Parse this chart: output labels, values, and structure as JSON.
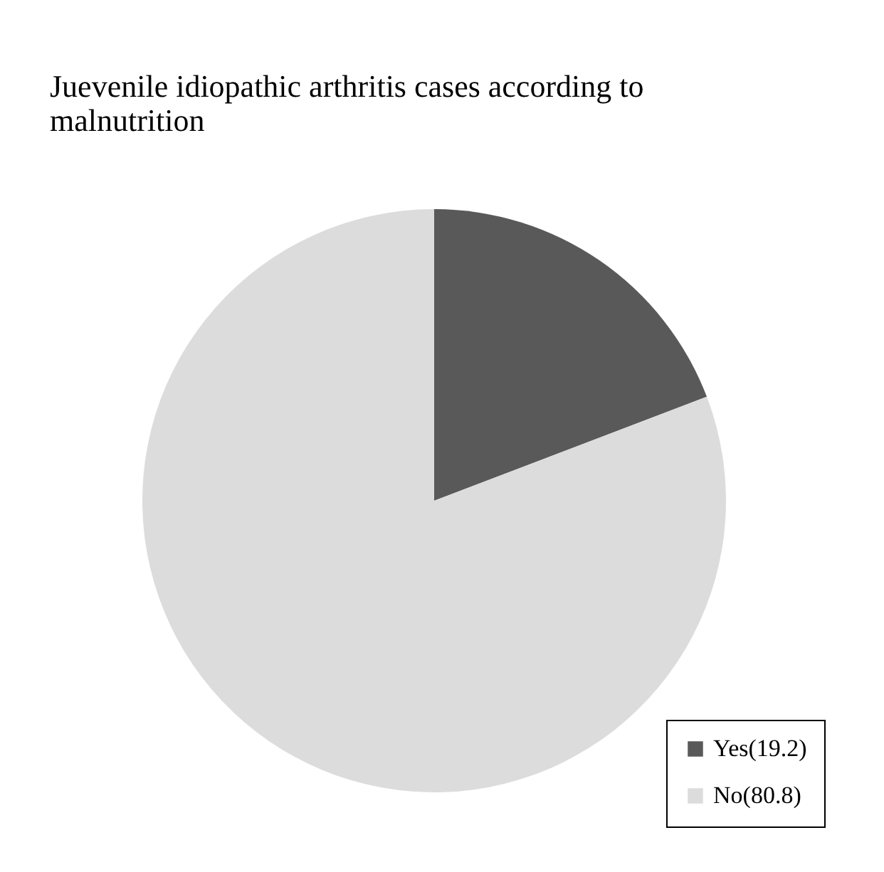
{
  "chart_data": {
    "type": "pie",
    "title": "Juevenile idiopathic arthritis cases according to malnutrition",
    "categories": [
      "Yes(19.2)",
      "No(80.8)"
    ],
    "values": [
      19.2,
      80.8
    ],
    "colors": [
      "#595959",
      "#dcdcdc"
    ],
    "legend": "bottom right"
  }
}
